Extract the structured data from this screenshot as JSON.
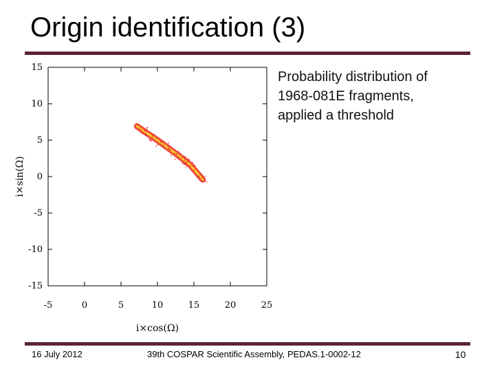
{
  "slide": {
    "title": "Origin identification (3)",
    "caption_lines": [
      "Probability distribution of",
      "1968-081E fragments,",
      "applied a threshold"
    ],
    "footer_date": "16 July 2012",
    "footer_conference": "39th COSPAR Scientific Assembly, PEDAS.1-0002-12",
    "page_number": "10",
    "accent_color": "#5b2333"
  },
  "chart_data": {
    "type": "heatmap",
    "title": "",
    "xlabel": "i×cos(Ω)",
    "ylabel": "i×sin(Ω)",
    "xlim": [
      -5,
      25
    ],
    "ylim": [
      -15,
      15
    ],
    "x_ticks": [
      -5,
      0,
      5,
      10,
      15,
      20,
      25
    ],
    "y_ticks": [
      15,
      10,
      5,
      0,
      -5,
      -10,
      -15
    ],
    "grid": false,
    "distribution": {
      "x_range": [
        7.2,
        16.2
      ],
      "y_range": [
        -0.7,
        6.9
      ],
      "centerline": [
        [
          7.2,
          6.9
        ],
        [
          8.5,
          6.0
        ],
        [
          10.0,
          5.0
        ],
        [
          11.5,
          3.9
        ],
        [
          13.0,
          2.8
        ],
        [
          14.5,
          1.6
        ],
        [
          16.2,
          -0.4
        ]
      ],
      "colors": [
        "#e5202c",
        "#f0572a",
        "#f7a21b",
        "#ffe34a"
      ]
    }
  }
}
